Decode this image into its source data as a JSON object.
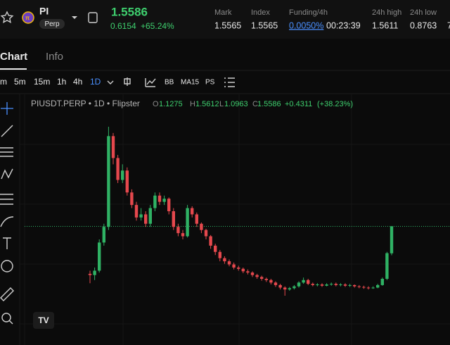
{
  "header": {
    "symbol": "PI",
    "badge": "Perp",
    "price": "1.5586",
    "change": "0.6154",
    "change_pct": "+65.24%",
    "stats": [
      {
        "label": "Mark",
        "value": "1.5565"
      },
      {
        "label": "Index",
        "value": "1.5565"
      },
      {
        "label": "Funding/4h",
        "value": "0.0050%",
        "extra": "00:23:39"
      },
      {
        "label": "24h high",
        "value": "1.5611"
      },
      {
        "label": "24h low",
        "value": "0.8763"
      },
      {
        "label": "7"
      }
    ]
  },
  "tabs": [
    "Chart",
    "Info"
  ],
  "timeframes": [
    "m",
    "5m",
    "15m",
    "1h",
    "4h",
    "1D"
  ],
  "indicators": [
    "BB",
    "MA15"
  ],
  "legend": {
    "title": "PIUSDT.PERP • 1D • Flipster",
    "o": "O",
    "h": "H",
    "l": "L",
    "c": "C",
    "change": "+0.4311",
    "change_pct": "(+38.23%)"
  },
  "chart_data": {
    "type": "candlestick",
    "ylim": [
      0,
      3.6
    ],
    "up_color": "#2fb264",
    "down_color": "#e5484d",
    "open": [
      0.8,
      0.78,
      0.85,
      1.3,
      1.55,
      3.0,
      2.65,
      2.3,
      2.45,
      2.1,
      1.9,
      1.7,
      1.75,
      1.6,
      1.85,
      2.05,
      1.95,
      2.0,
      1.8,
      1.55,
      1.45,
      1.4,
      1.85,
      1.75,
      1.6,
      1.5,
      1.4,
      1.25,
      1.15,
      1.05,
      1.0,
      0.95,
      0.9,
      0.88,
      0.84,
      0.82,
      0.78,
      0.75,
      0.72,
      0.7,
      0.66,
      0.62,
      0.58,
      0.55,
      0.57,
      0.6,
      0.66,
      0.7,
      0.64,
      0.62,
      0.63,
      0.61,
      0.63,
      0.64,
      0.62,
      0.63,
      0.61,
      0.62,
      0.6,
      0.59,
      0.58,
      0.57,
      0.58,
      0.62,
      0.72,
      1.1275
    ],
    "high": [
      0.85,
      0.9,
      1.35,
      1.6,
      3.15,
      3.05,
      2.7,
      2.55,
      2.5,
      2.15,
      1.95,
      1.85,
      1.8,
      1.9,
      2.1,
      2.1,
      2.05,
      2.02,
      1.85,
      1.6,
      1.5,
      1.9,
      1.88,
      1.78,
      1.62,
      1.52,
      1.42,
      1.28,
      1.18,
      1.08,
      1.03,
      0.98,
      0.93,
      0.9,
      0.87,
      0.84,
      0.8,
      0.77,
      0.74,
      0.72,
      0.68,
      0.64,
      0.6,
      0.59,
      0.62,
      0.68,
      0.74,
      0.72,
      0.66,
      0.65,
      0.65,
      0.65,
      0.66,
      0.66,
      0.65,
      0.65,
      0.64,
      0.63,
      0.62,
      0.61,
      0.6,
      0.6,
      0.64,
      0.74,
      1.15,
      1.5612
    ],
    "low": [
      0.65,
      0.7,
      0.82,
      1.25,
      1.5,
      2.55,
      2.25,
      2.25,
      2.05,
      1.85,
      1.65,
      1.65,
      1.55,
      1.55,
      1.8,
      1.9,
      1.9,
      1.75,
      1.5,
      1.4,
      1.35,
      1.38,
      1.7,
      1.55,
      1.45,
      1.35,
      1.2,
      1.1,
      1.0,
      0.96,
      0.92,
      0.87,
      0.85,
      0.81,
      0.79,
      0.75,
      0.72,
      0.69,
      0.67,
      0.63,
      0.59,
      0.55,
      0.45,
      0.53,
      0.55,
      0.58,
      0.64,
      0.62,
      0.6,
      0.6,
      0.59,
      0.6,
      0.61,
      0.6,
      0.6,
      0.59,
      0.59,
      0.58,
      0.57,
      0.56,
      0.55,
      0.56,
      0.57,
      0.61,
      0.7,
      1.0963
    ],
    "close": [
      0.78,
      0.85,
      1.3,
      1.55,
      3.0,
      2.65,
      2.3,
      2.45,
      2.1,
      1.9,
      1.7,
      1.75,
      1.6,
      1.85,
      2.05,
      1.95,
      2.0,
      1.8,
      1.55,
      1.45,
      1.4,
      1.85,
      1.75,
      1.6,
      1.5,
      1.4,
      1.25,
      1.15,
      1.05,
      1.0,
      0.95,
      0.9,
      0.88,
      0.84,
      0.82,
      0.78,
      0.75,
      0.72,
      0.7,
      0.66,
      0.62,
      0.58,
      0.55,
      0.57,
      0.6,
      0.66,
      0.7,
      0.64,
      0.62,
      0.63,
      0.61,
      0.63,
      0.64,
      0.62,
      0.63,
      0.61,
      0.62,
      0.6,
      0.59,
      0.58,
      0.57,
      0.58,
      0.62,
      0.72,
      1.13,
      1.5586
    ]
  }
}
